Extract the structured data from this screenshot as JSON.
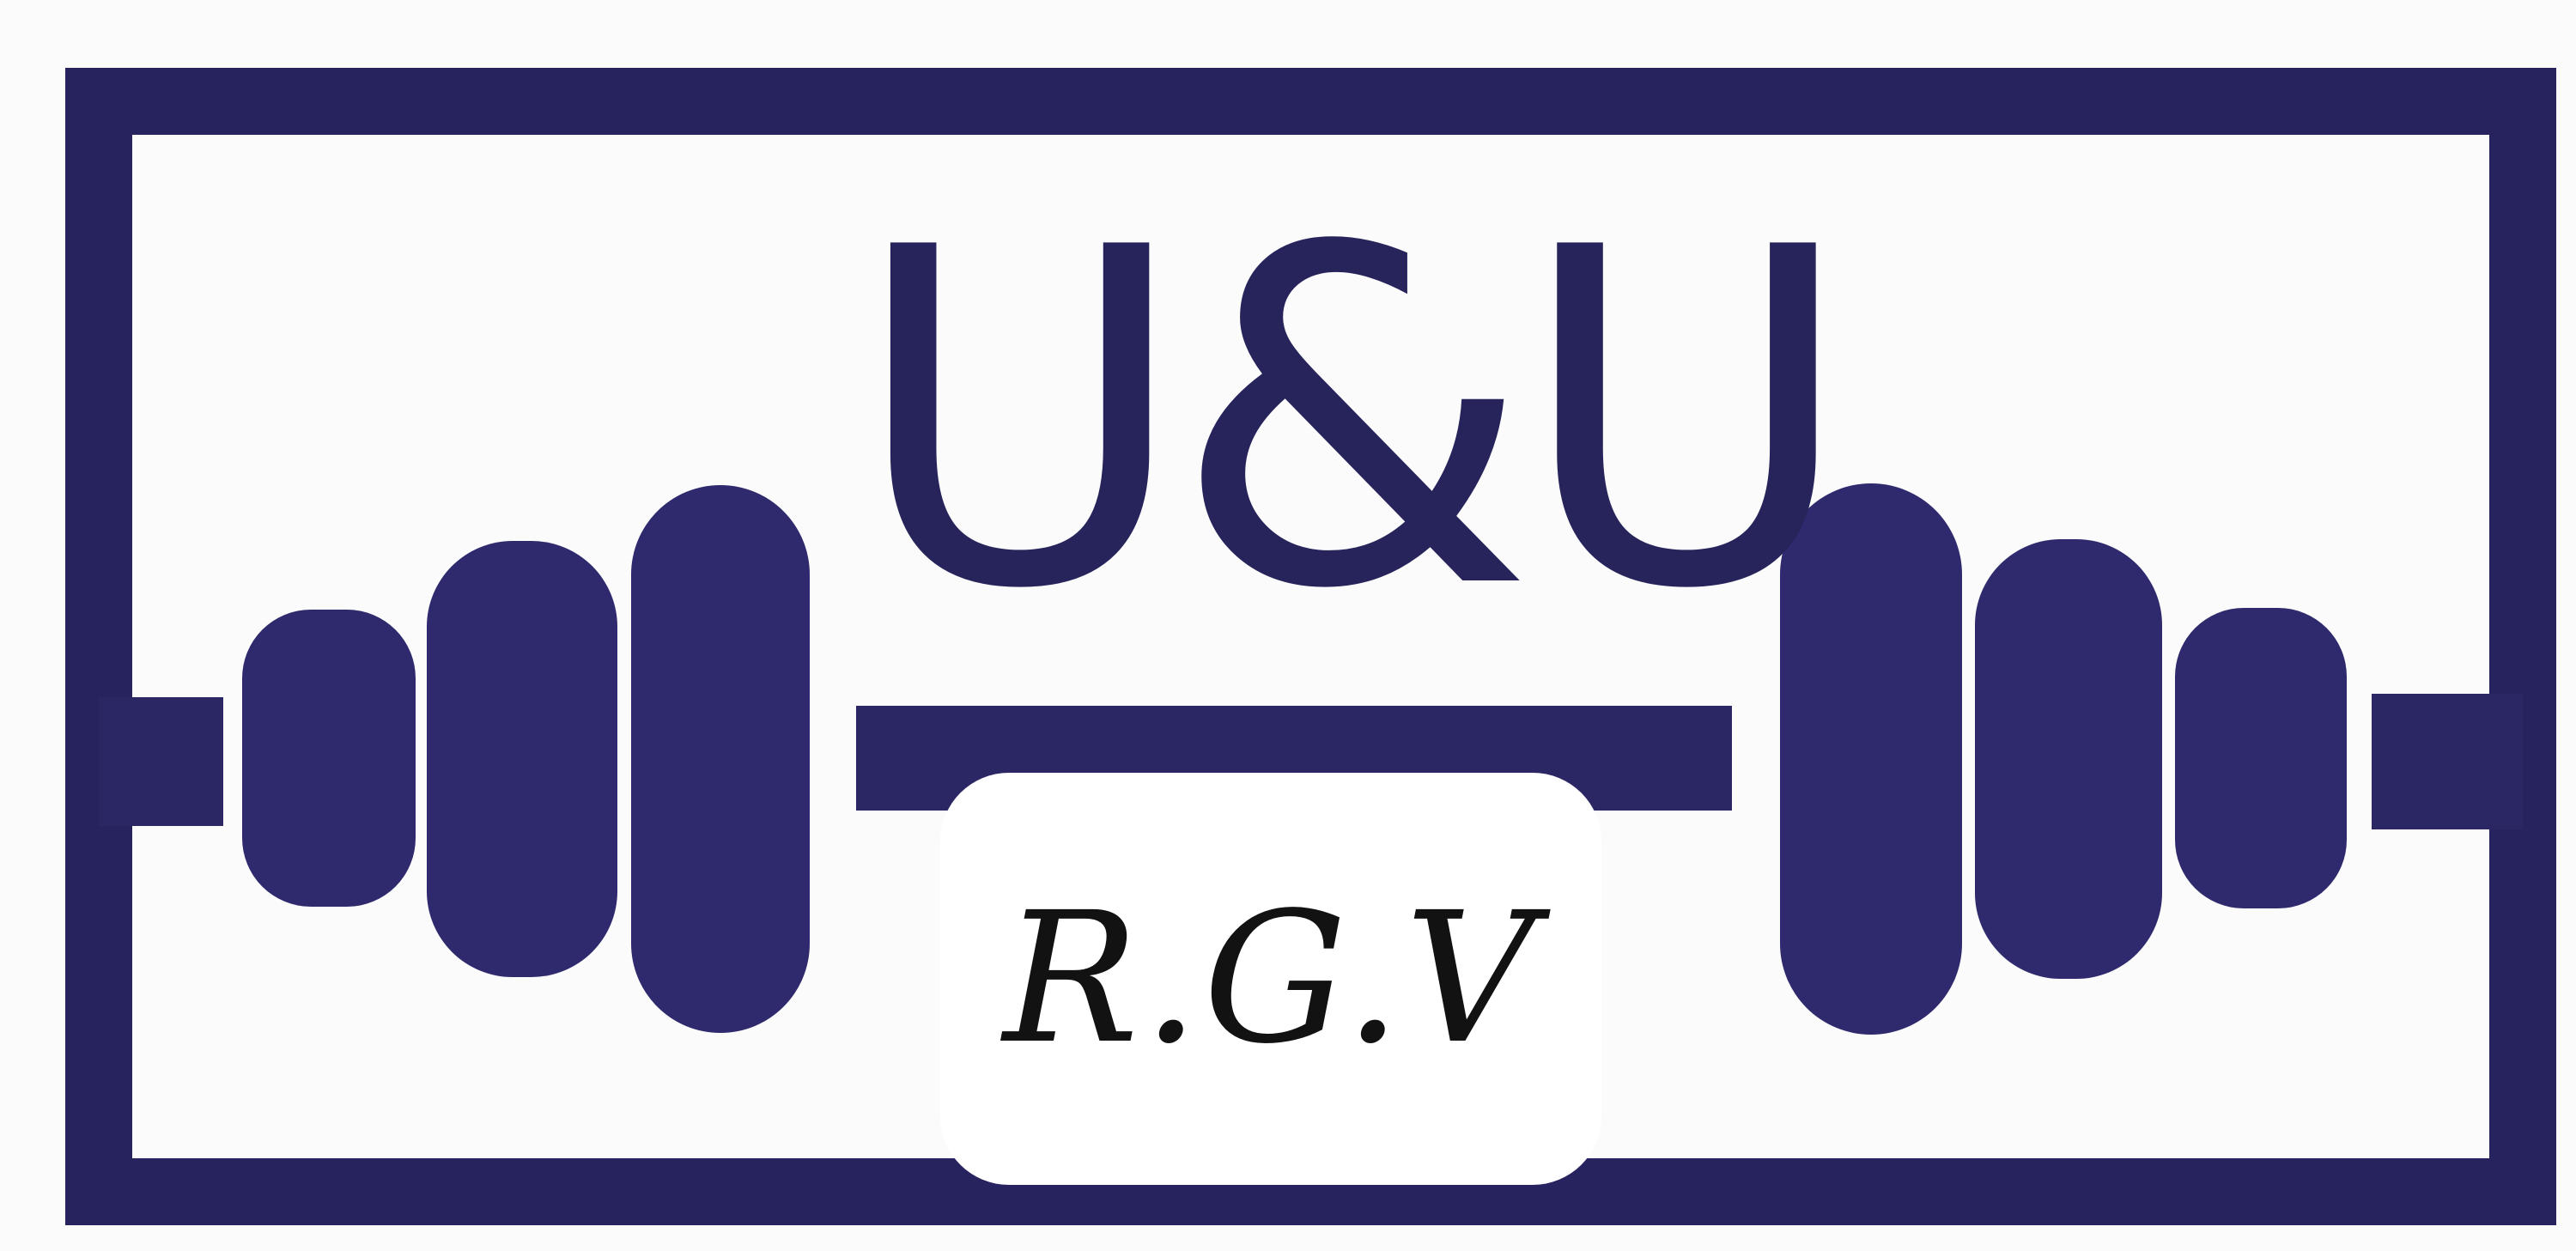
{
  "logo": {
    "title": "U&U",
    "location": "R.G.V",
    "icon": "barbell-icon",
    "colors": {
      "frame": "#27235f",
      "plates": "#2e2a6d",
      "text": "#26245b",
      "location_text": "#121212",
      "background": "#fbfbfb",
      "badge": "#ffffff"
    }
  }
}
